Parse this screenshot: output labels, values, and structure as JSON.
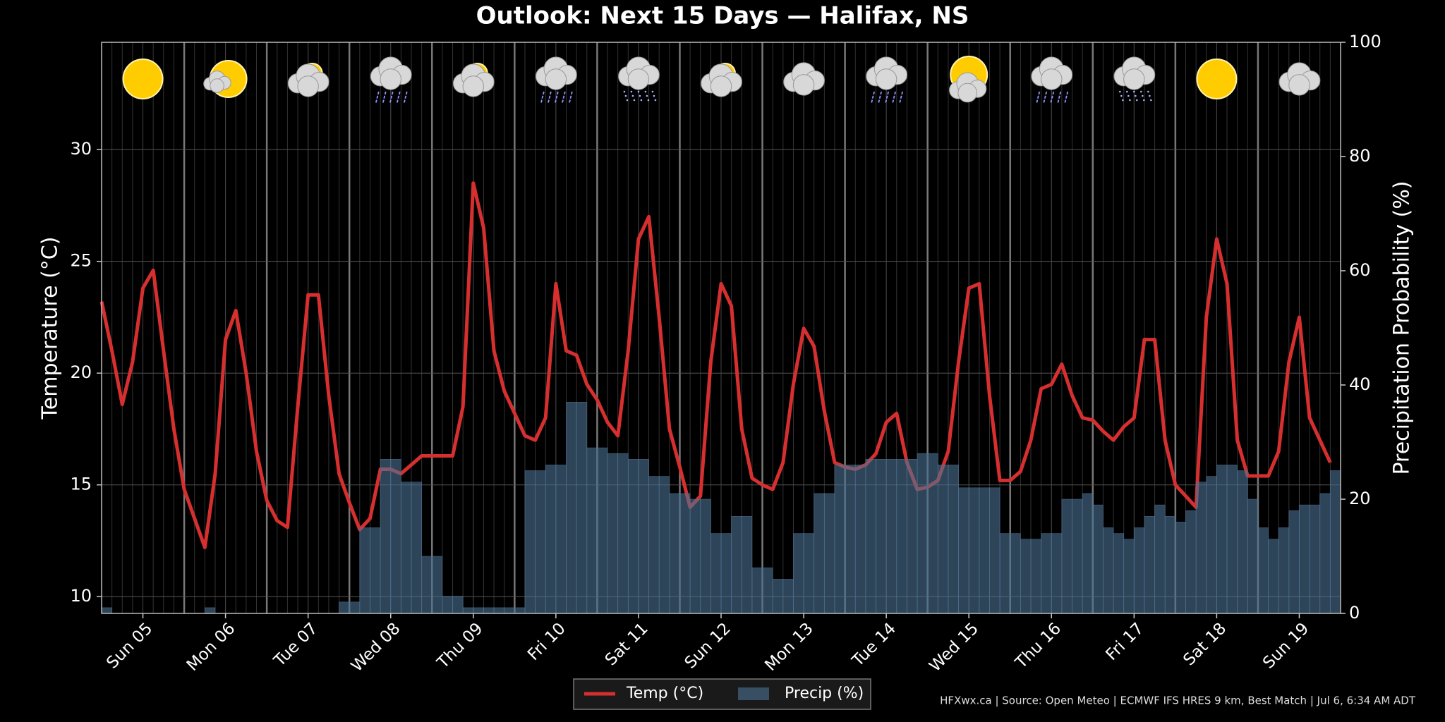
{
  "chart_data": {
    "type": "combo",
    "title": "Outlook: Next 15 Days — Halifax, NS",
    "y_label": "Temperature (°C)",
    "y2_label": "Precipitation Probability (%)",
    "caption": "HFXwx.ca | Source: Open Meteo | ECMWF IFS HRES 9 km, Best Match | Jul 6, 6:34 AM ADT",
    "xlim": [
      0,
      15
    ],
    "xticks": [
      {
        "value": 0.5,
        "label": "Sun 05"
      },
      {
        "value": 1.5,
        "label": "Mon 06"
      },
      {
        "value": 2.5,
        "label": "Tue 07"
      },
      {
        "value": 3.5,
        "label": "Wed 08"
      },
      {
        "value": 4.5,
        "label": "Thu 09"
      },
      {
        "value": 5.5,
        "label": "Fri 10"
      },
      {
        "value": 6.5,
        "label": "Sat 11"
      },
      {
        "value": 7.5,
        "label": "Sun 12"
      },
      {
        "value": 8.5,
        "label": "Mon 13"
      },
      {
        "value": 9.5,
        "label": "Tue 14"
      },
      {
        "value": 10.5,
        "label": "Wed 15"
      },
      {
        "value": 11.5,
        "label": "Thu 16"
      },
      {
        "value": 12.5,
        "label": "Fri 17"
      },
      {
        "value": 13.5,
        "label": "Sat 18"
      },
      {
        "value": 14.5,
        "label": "Sun 19"
      }
    ],
    "ylim": [
      9.25,
      34.8
    ],
    "yticks": [
      10,
      15,
      20,
      25,
      30
    ],
    "y2lim": [
      0,
      100
    ],
    "y2ticks": [
      0,
      20,
      40,
      60,
      80,
      100
    ],
    "grid": true,
    "legend": "bottom",
    "x": [
      0,
      0.125,
      0.25,
      0.375,
      0.5,
      0.625,
      0.75,
      0.875,
      1,
      1.125,
      1.25,
      1.375,
      1.5,
      1.625,
      1.75,
      1.875,
      2,
      2.125,
      2.25,
      2.375,
      2.5,
      2.625,
      2.75,
      2.875,
      3,
      3.125,
      3.25,
      3.375,
      3.5,
      3.625,
      3.75,
      3.875,
      4,
      4.125,
      4.25,
      4.375,
      4.5,
      4.625,
      4.75,
      4.875,
      5,
      5.125,
      5.25,
      5.375,
      5.5,
      5.625,
      5.75,
      5.875,
      6,
      6.125,
      6.25,
      6.375,
      6.5,
      6.625,
      6.75,
      6.875,
      7,
      7.125,
      7.25,
      7.375,
      7.5,
      7.625,
      7.75,
      7.875,
      8,
      8.125,
      8.25,
      8.375,
      8.5,
      8.625,
      8.75,
      8.875,
      9,
      9.125,
      9.25,
      9.375,
      9.5,
      9.625,
      9.75,
      9.875,
      10,
      10.125,
      10.25,
      10.375,
      10.5,
      10.625,
      10.75,
      10.875,
      11,
      11.125,
      11.25,
      11.375,
      11.5,
      11.625,
      11.75,
      11.875,
      12,
      12.125,
      12.25,
      12.375,
      12.5,
      12.625,
      12.75,
      12.875,
      13,
      13.125,
      13.25,
      13.375,
      13.5,
      13.625,
      13.75,
      13.875,
      14,
      14.125,
      14.25,
      14.375,
      14.5,
      14.625,
      14.75,
      14.875
    ],
    "series": [
      {
        "name": "Temp (°C)",
        "type": "line",
        "color": "#d62f2f",
        "values": [
          23.2,
          21.0,
          18.6,
          20.5,
          23.8,
          24.6,
          21.0,
          17.5,
          14.8,
          13.5,
          12.2,
          15.5,
          21.5,
          22.8,
          20.0,
          16.5,
          14.3,
          13.4,
          13.1,
          18.5,
          23.5,
          23.5,
          19.0,
          15.5,
          14.2,
          13.0,
          13.5,
          15.7,
          15.7,
          15.5,
          15.9,
          16.3,
          16.3,
          16.3,
          16.3,
          18.5,
          28.5,
          26.5,
          21.0,
          19.2,
          18.2,
          17.2,
          17.0,
          18.0,
          24.0,
          21.0,
          20.8,
          19.5,
          18.8,
          17.8,
          17.2,
          21.0,
          26.0,
          27.0,
          22.5,
          17.5,
          15.8,
          14.0,
          14.5,
          20.5,
          24.0,
          23.0,
          17.5,
          15.3,
          15.0,
          14.8,
          16.0,
          19.5,
          22.0,
          21.2,
          18.3,
          16.0,
          15.8,
          15.7,
          15.9,
          16.4,
          17.8,
          18.2,
          16.0,
          14.8,
          14.9,
          15.2,
          16.5,
          20.5,
          23.8,
          24.0,
          19.0,
          15.2,
          15.2,
          15.6,
          17.0,
          19.3,
          19.5,
          20.4,
          19.0,
          18.0,
          17.9,
          17.4,
          17.0,
          17.6,
          18.0,
          21.5,
          21.5,
          17.0,
          15.0,
          14.5,
          14.0,
          22.5,
          26.0,
          24.0,
          17.0,
          15.4,
          15.4,
          15.4,
          16.5,
          20.5,
          22.5,
          18.0,
          17.0,
          16.0
        ]
      },
      {
        "name": "Precip (%)",
        "type": "bar",
        "axis": "y2",
        "color": "#4d7394",
        "values": [
          1,
          0,
          0,
          0,
          0,
          0,
          0,
          0,
          0,
          0,
          1,
          0,
          0,
          0,
          0,
          0,
          0,
          0,
          0,
          0,
          0,
          0,
          0,
          2,
          2,
          15,
          15,
          27,
          27,
          23,
          23,
          10,
          10,
          3,
          3,
          1,
          1,
          1,
          1,
          1,
          1,
          25,
          25,
          26,
          26,
          37,
          37,
          29,
          29,
          28,
          28,
          27,
          27,
          24,
          24,
          21,
          21,
          20,
          20,
          14,
          14,
          17,
          17,
          8,
          8,
          6,
          6,
          14,
          14,
          21,
          21,
          26,
          26,
          26,
          27,
          27,
          27,
          27,
          27,
          28,
          28,
          26,
          26,
          22,
          22,
          22,
          22,
          14,
          14,
          13,
          13,
          14,
          14,
          20,
          20,
          21,
          19,
          15,
          14,
          13,
          15,
          17,
          19,
          17,
          16,
          18,
          23,
          24,
          26,
          26,
          25,
          20,
          15,
          13,
          15,
          18,
          19,
          19,
          21,
          25
        ]
      }
    ]
  }
}
